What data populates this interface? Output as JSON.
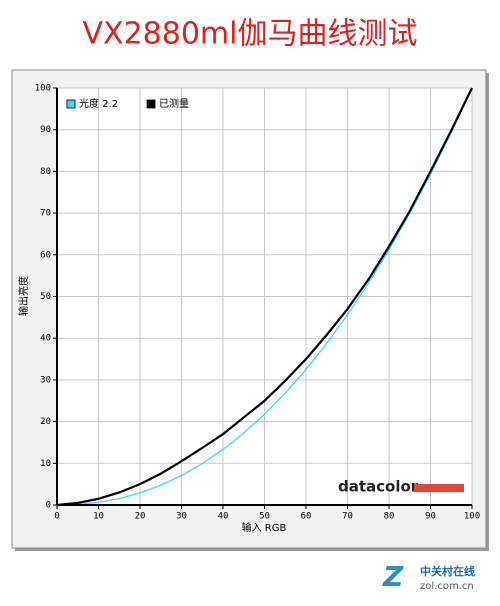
{
  "chart_data": {
    "type": "line",
    "title": "VX2880ml伽马曲线测试",
    "xlabel": "输入 RGB",
    "ylabel": "输出亮度",
    "x": [
      0,
      5,
      10,
      15,
      20,
      25,
      30,
      35,
      40,
      45,
      50,
      55,
      60,
      65,
      70,
      75,
      80,
      85,
      90,
      95,
      100
    ],
    "series": [
      {
        "name": "光度 2.2",
        "color": "#33e0e8",
        "values": [
          0,
          0.14,
          0.63,
          1.54,
          2.9,
          4.74,
          7.07,
          9.93,
          13.32,
          17.26,
          21.76,
          26.84,
          32.5,
          38.76,
          45.63,
          53.1,
          61.21,
          69.94,
          79.31,
          89.33,
          100
        ]
      },
      {
        "name": "已测量",
        "color": "#000000",
        "values": [
          0,
          0.5,
          1.5,
          3,
          5,
          7.5,
          10.5,
          13.7,
          17,
          21,
          25,
          29.8,
          35,
          40.8,
          47,
          54,
          62,
          70.5,
          80,
          89.8,
          100
        ]
      }
    ],
    "xlim": [
      0,
      100
    ],
    "ylim": [
      0,
      100
    ],
    "xticks": [
      0,
      10,
      20,
      30,
      40,
      50,
      60,
      70,
      80,
      90,
      100
    ],
    "yticks": [
      0,
      10,
      20,
      30,
      40,
      50,
      60,
      70,
      80,
      90,
      100
    ],
    "grid": true,
    "legend": "top-left",
    "logo": "datacolor"
  },
  "watermark": {
    "name": "中关村在线",
    "site": "zol.com.cn"
  }
}
